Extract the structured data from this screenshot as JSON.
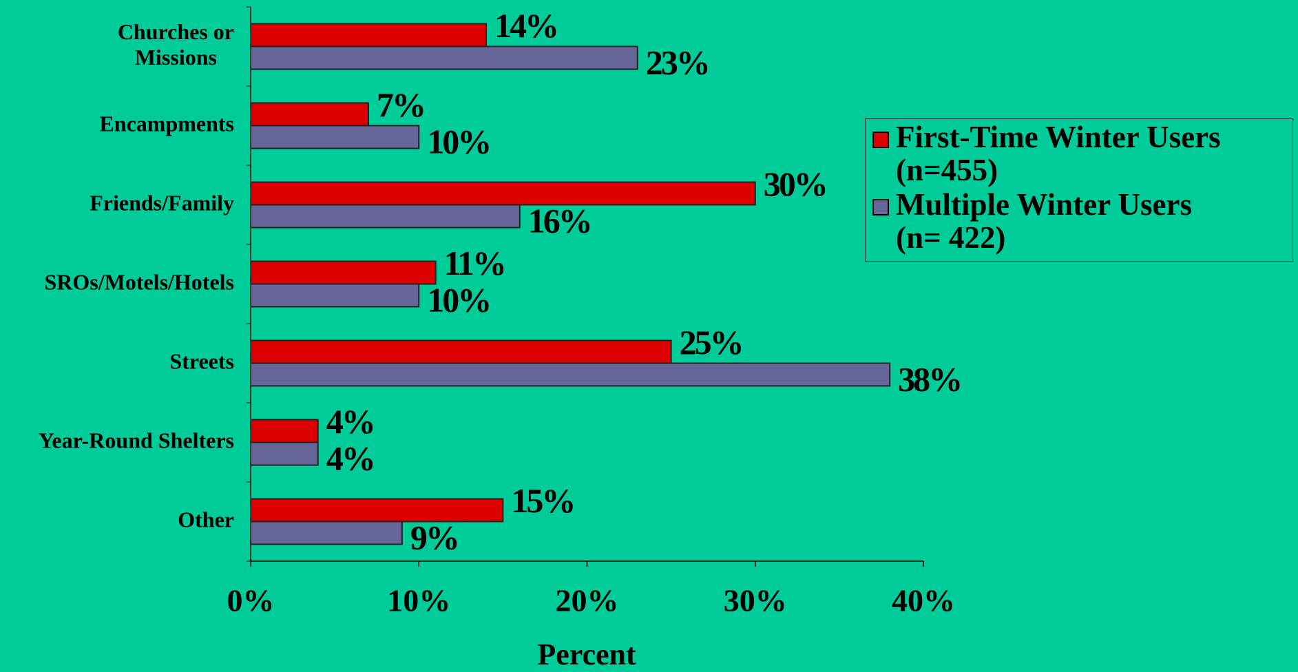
{
  "chart_data": {
    "type": "bar",
    "orientation": "horizontal",
    "categories": [
      "Churches or\nMissions",
      "Encampments",
      "Friends/Family",
      "SROs/Motels/Hotels",
      "Streets",
      "Year-Round Shelters",
      "Other"
    ],
    "series": [
      {
        "name": "First-Time Winter Users\n(n=455)",
        "color": "#dd0000",
        "values": [
          14,
          7,
          30,
          11,
          25,
          4,
          15
        ],
        "value_labels": [
          "14%",
          "7%",
          "30%",
          "11%",
          "25%",
          "4%",
          "15%"
        ]
      },
      {
        "name": "Multiple Winter Users\n(n= 422)",
        "color": "#666699",
        "values": [
          23,
          10,
          16,
          10,
          38,
          4,
          9
        ],
        "value_labels": [
          "23%",
          "10%",
          "16%",
          "10%",
          "38%",
          "4%",
          "9%"
        ]
      }
    ],
    "xlabel": "Percent",
    "xlim": [
      0,
      40
    ],
    "xticks": [
      {
        "value": 0,
        "label": "0%"
      },
      {
        "value": 10,
        "label": "10%"
      },
      {
        "value": 20,
        "label": "20%"
      },
      {
        "value": 30,
        "label": "30%"
      },
      {
        "value": 40,
        "label": "40%"
      }
    ],
    "grid": false,
    "legend": "right"
  }
}
